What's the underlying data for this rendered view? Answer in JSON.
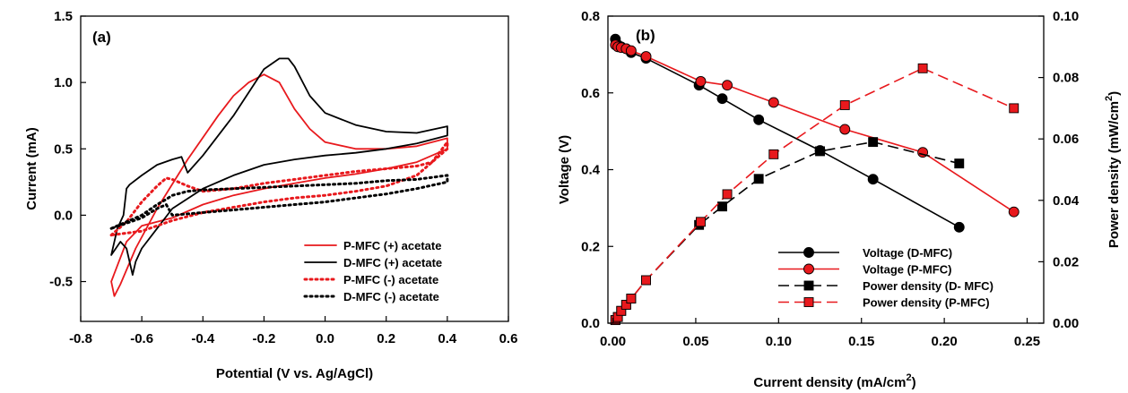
{
  "chart_data": [
    {
      "type": "line",
      "panel_label": "(a)",
      "xlabel": "Potential (V vs. Ag/AgCl)",
      "ylabel": "Current (mA)",
      "xlim": [
        -0.8,
        0.6
      ],
      "ylim": [
        -0.8,
        1.5
      ],
      "xticks": [
        -0.8,
        -0.6,
        -0.4,
        -0.2,
        0.0,
        0.2,
        0.4,
        0.6
      ],
      "xtick_labels": [
        "-0.8",
        "-0.6",
        "-0.4",
        "-0.2",
        "0.0",
        "0.2",
        "0.4",
        "0.6"
      ],
      "yticks": [
        -0.5,
        0.0,
        0.5,
        1.0,
        1.5
      ],
      "ytick_labels": [
        "-0.5",
        "0.0",
        "0.5",
        "1.0",
        "1.5"
      ],
      "legend_position": "bottom-right",
      "series": [
        {
          "name": "P-MFC (+) acetate",
          "color": "#e8191d",
          "style": "solid",
          "x": [
            -0.7,
            -0.69,
            -0.67,
            -0.62,
            -0.55,
            -0.45,
            -0.35,
            -0.3,
            -0.25,
            -0.2,
            -0.15,
            -0.1,
            -0.05,
            0.0,
            0.1,
            0.2,
            0.3,
            0.4,
            0.4,
            0.3,
            0.2,
            0.1,
            0.0,
            -0.1,
            -0.2,
            -0.3,
            -0.4,
            -0.5,
            -0.55,
            -0.6,
            -0.65,
            -0.7
          ],
          "y": [
            -0.5,
            -0.61,
            -0.52,
            -0.25,
            0.05,
            0.42,
            0.75,
            0.9,
            1.0,
            1.06,
            1.0,
            0.8,
            0.65,
            0.55,
            0.5,
            0.5,
            0.52,
            0.58,
            0.5,
            0.4,
            0.35,
            0.31,
            0.28,
            0.24,
            0.2,
            0.15,
            0.08,
            -0.02,
            -0.05,
            -0.08,
            -0.2,
            -0.5
          ]
        },
        {
          "name": "D-MFC (+) acetate",
          "color": "#000000",
          "style": "solid",
          "x": [
            -0.7,
            -0.68,
            -0.66,
            -0.65,
            -0.64,
            -0.6,
            -0.55,
            -0.5,
            -0.47,
            -0.45,
            -0.4,
            -0.3,
            -0.2,
            -0.15,
            -0.12,
            -0.1,
            -0.05,
            0.0,
            0.1,
            0.2,
            0.3,
            0.4,
            0.4,
            0.3,
            0.2,
            0.1,
            0.0,
            -0.1,
            -0.2,
            -0.3,
            -0.4,
            -0.5,
            -0.55,
            -0.6,
            -0.62,
            -0.63,
            -0.65,
            -0.67,
            -0.7
          ],
          "y": [
            -0.3,
            -0.1,
            0.0,
            0.2,
            0.23,
            0.3,
            0.38,
            0.42,
            0.44,
            0.32,
            0.45,
            0.75,
            1.1,
            1.18,
            1.18,
            1.12,
            0.9,
            0.77,
            0.68,
            0.63,
            0.62,
            0.67,
            0.6,
            0.54,
            0.5,
            0.47,
            0.45,
            0.42,
            0.38,
            0.3,
            0.2,
            0.05,
            -0.1,
            -0.25,
            -0.35,
            -0.45,
            -0.25,
            -0.2,
            -0.3
          ]
        },
        {
          "name": "P-MFC (-) acetate",
          "color": "#e8191d",
          "style": "dotted",
          "x": [
            -0.7,
            -0.65,
            -0.6,
            -0.55,
            -0.52,
            -0.5,
            -0.45,
            -0.4,
            -0.3,
            -0.2,
            -0.1,
            0.0,
            0.1,
            0.2,
            0.3,
            0.35,
            0.4,
            0.4,
            0.3,
            0.2,
            0.1,
            0.0,
            -0.1,
            -0.2,
            -0.3,
            -0.4,
            -0.5,
            -0.6,
            -0.7
          ],
          "y": [
            -0.15,
            -0.05,
            0.1,
            0.22,
            0.28,
            0.27,
            0.22,
            0.18,
            0.2,
            0.24,
            0.27,
            0.3,
            0.33,
            0.35,
            0.37,
            0.4,
            0.55,
            0.5,
            0.3,
            0.22,
            0.18,
            0.15,
            0.13,
            0.1,
            0.06,
            0.02,
            -0.04,
            -0.12,
            -0.15
          ]
        },
        {
          "name": "D-MFC (-) acetate",
          "color": "#000000",
          "style": "dotted",
          "x": [
            -0.7,
            -0.65,
            -0.6,
            -0.55,
            -0.52,
            -0.5,
            -0.45,
            -0.4,
            -0.3,
            -0.2,
            -0.1,
            0.0,
            0.1,
            0.2,
            0.3,
            0.4,
            0.4,
            0.3,
            0.2,
            0.1,
            0.0,
            -0.1,
            -0.2,
            -0.3,
            -0.4,
            -0.5,
            -0.52,
            -0.55,
            -0.6,
            -0.65,
            -0.7
          ],
          "y": [
            -0.1,
            -0.05,
            0.0,
            0.08,
            0.12,
            0.15,
            0.18,
            0.19,
            0.2,
            0.21,
            0.22,
            0.23,
            0.24,
            0.26,
            0.27,
            0.3,
            0.25,
            0.2,
            0.16,
            0.13,
            0.1,
            0.08,
            0.06,
            0.04,
            0.02,
            0.0,
            0.08,
            0.05,
            -0.02,
            -0.06,
            -0.1
          ]
        }
      ]
    },
    {
      "type": "line",
      "panel_label": "(b)",
      "xlabel": "Current density (mA/cm",
      "xlabel_sup": "2",
      "xlabel_end": ")",
      "ylabel": "Voltage (V)",
      "y2label": "Power density (mW/cm",
      "y2label_sup": "2",
      "y2label_end": ")",
      "xlim": [
        -0.003,
        0.26
      ],
      "ylim": [
        0,
        0.8
      ],
      "y2lim": [
        0,
        0.1
      ],
      "xticks": [
        0.0,
        0.05,
        0.1,
        0.15,
        0.2,
        0.25
      ],
      "xtick_labels": [
        "0.00",
        "0.05",
        "0.10",
        "0.15",
        "0.20",
        "0.25"
      ],
      "yticks": [
        0.0,
        0.2,
        0.4,
        0.6,
        0.8
      ],
      "ytick_labels": [
        "0.0",
        "0.2",
        "0.4",
        "0.6",
        "0.8"
      ],
      "y2ticks": [
        0.0,
        0.02,
        0.04,
        0.06,
        0.08,
        0.1
      ],
      "y2tick_labels": [
        "0.00",
        "0.02",
        "0.04",
        "0.06",
        "0.08",
        "0.10"
      ],
      "legend_position": "bottom-right",
      "series": [
        {
          "name": "Voltage (D-MFC)",
          "color": "#000000",
          "style": "solid",
          "marker": "circle",
          "axis": "left",
          "x": [
            0.0015,
            0.003,
            0.005,
            0.008,
            0.011,
            0.02,
            0.052,
            0.066,
            0.088,
            0.125,
            0.157,
            0.209
          ],
          "y": [
            0.74,
            0.725,
            0.72,
            0.715,
            0.705,
            0.69,
            0.62,
            0.585,
            0.53,
            0.45,
            0.375,
            0.25
          ]
        },
        {
          "name": "Voltage (P-MFC)",
          "color": "#e8191d",
          "style": "solid",
          "marker": "circle",
          "axis": "left",
          "x": [
            0.0015,
            0.003,
            0.005,
            0.008,
            0.011,
            0.02,
            0.053,
            0.069,
            0.097,
            0.14,
            0.187,
            0.242
          ],
          "y": [
            0.725,
            0.72,
            0.718,
            0.715,
            0.71,
            0.695,
            0.63,
            0.62,
            0.575,
            0.505,
            0.445,
            0.29
          ]
        },
        {
          "name": "Power density (D- MFC)",
          "color": "#000000",
          "style": "dashed",
          "marker": "square",
          "axis": "right",
          "x": [
            0.0015,
            0.003,
            0.005,
            0.008,
            0.011,
            0.02,
            0.052,
            0.066,
            0.088,
            0.125,
            0.157,
            0.209
          ],
          "y": [
            0.001,
            0.002,
            0.004,
            0.006,
            0.008,
            0.014,
            0.032,
            0.038,
            0.047,
            0.056,
            0.059,
            0.052
          ]
        },
        {
          "name": "Power density (P-MFC)",
          "color": "#e8191d",
          "style": "dashed",
          "marker": "square",
          "axis": "right",
          "x": [
            0.0015,
            0.003,
            0.005,
            0.008,
            0.011,
            0.02,
            0.053,
            0.069,
            0.097,
            0.14,
            0.187,
            0.242
          ],
          "y": [
            0.001,
            0.002,
            0.004,
            0.006,
            0.008,
            0.014,
            0.033,
            0.042,
            0.055,
            0.071,
            0.083,
            0.07
          ]
        }
      ]
    }
  ]
}
